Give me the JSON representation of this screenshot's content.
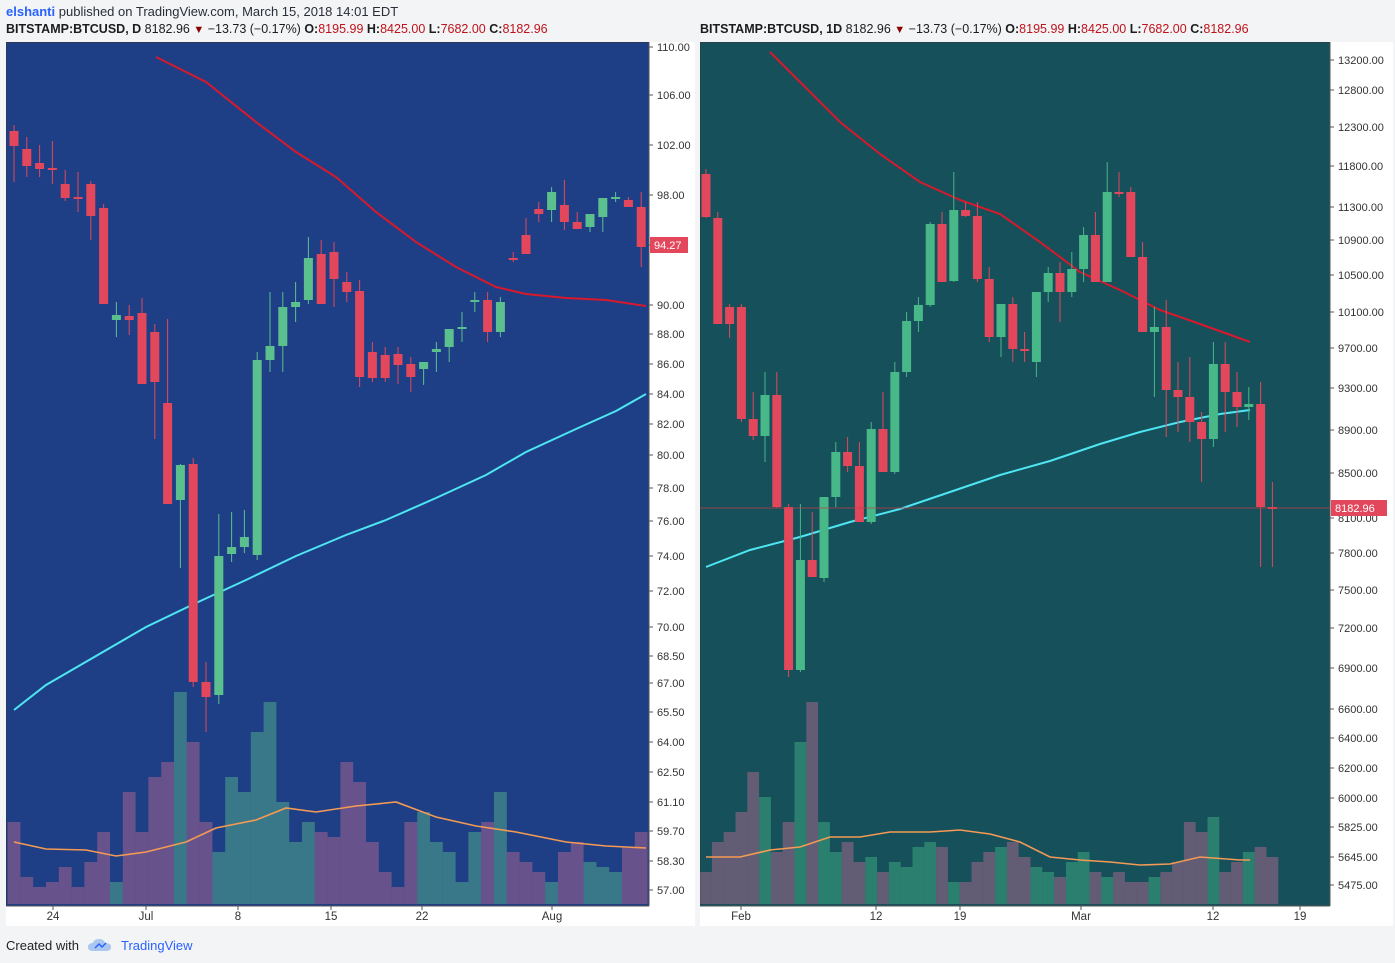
{
  "header": {
    "username": "elshanti",
    "published_text": "published on TradingView.com, March 15, 2018 14:01 EDT"
  },
  "footer": {
    "created_with": "Created with",
    "brand": "TradingView"
  },
  "charts": [
    {
      "legend": {
        "symbol": "BITSTAMP:BTCUSD, D",
        "price": "8182.96",
        "change": "−13.73 (−0.17%)",
        "open_label": "O:",
        "open": "8195.99",
        "high_label": "H:",
        "high": "8425.00",
        "low_label": "L:",
        "low": "7682.00",
        "close_label": "C:",
        "close": "8182.96"
      },
      "price_label": "94.27",
      "y_ticks": [
        "110.00",
        "106.00",
        "102.00",
        "98.00",
        "94.00",
        "90.00",
        "88.00",
        "86.00",
        "84.00",
        "82.00",
        "80.00",
        "78.00",
        "76.00",
        "74.00",
        "72.00",
        "70.00",
        "68.50",
        "67.00",
        "65.50",
        "64.00",
        "62.50",
        "61.10",
        "59.70",
        "58.30",
        "57.00"
      ],
      "x_ticks": [
        "24",
        "Jul",
        "8",
        "15",
        "22",
        "Aug"
      ],
      "colors": {
        "background": "#1e3f85",
        "up": "#5bbf8e",
        "down": "#e3475c",
        "ma_fast": "#4ee6f2",
        "ma_slow": "#d7192d",
        "vol_ma": "#f49a54"
      }
    },
    {
      "legend": {
        "symbol": "BITSTAMP:BTCUSD, 1D",
        "price": "8182.96",
        "change": "−13.73 (−0.17%)",
        "open_label": "O:",
        "open": "8195.99",
        "high_label": "H:",
        "high": "8425.00",
        "low_label": "L:",
        "low": "7682.00",
        "close_label": "C:",
        "close": "8182.96"
      },
      "price_label": "8182.96",
      "y_ticks": [
        "13200.00",
        "12800.00",
        "12300.00",
        "11800.00",
        "11300.00",
        "10900.00",
        "10500.00",
        "10100.00",
        "9700.00",
        "9300.00",
        "8900.00",
        "8500.00",
        "8100.00",
        "7800.00",
        "7500.00",
        "7200.00",
        "6900.00",
        "6600.00",
        "6400.00",
        "6200.00",
        "6000.00",
        "5825.00",
        "5645.00",
        "5475.00"
      ],
      "x_ticks": [
        "Feb",
        "12",
        "19",
        "Mar",
        "12",
        "19"
      ],
      "colors": {
        "background": "#15505b",
        "up": "#48b888",
        "down": "#e3475c",
        "ma_fast": "#4ee6f2",
        "ma_slow": "#d7192d",
        "vol_ma": "#f49a54"
      }
    }
  ]
}
